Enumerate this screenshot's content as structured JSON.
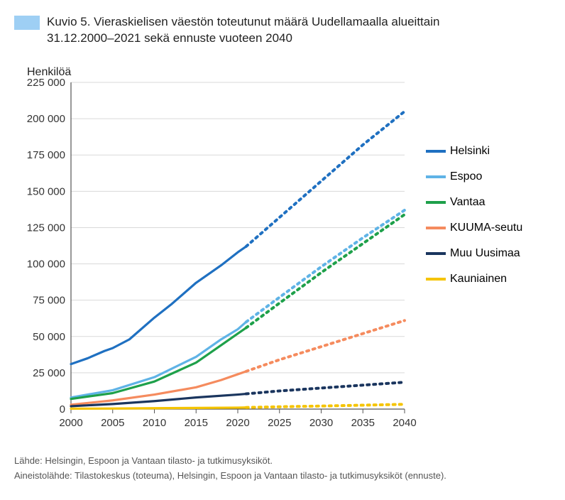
{
  "title_line1": "Kuvio 5. Vieraskielisen väestön toteutunut määrä Uudellamaalla alueittain",
  "title_line2": "31.12.2000–2021 sekä ennuste vuoteen 2040",
  "y_axis_label": "Henkilöä",
  "y_ticks": [
    0,
    25000,
    50000,
    75000,
    100000,
    125000,
    150000,
    175000,
    200000,
    225000
  ],
  "y_tick_labels": [
    "0",
    "25 000",
    "50 000",
    "75 000",
    "100 000",
    "125 000",
    "150 000",
    "175 000",
    "200 000",
    "225 000"
  ],
  "x_ticks": [
    2000,
    2005,
    2010,
    2015,
    2020,
    2025,
    2030,
    2035,
    2040
  ],
  "x_tick_labels": [
    "2000",
    "2005",
    "2010",
    "2015",
    "2020",
    "2025",
    "2030",
    "2035",
    "2040"
  ],
  "xlim": [
    2000,
    2040
  ],
  "ylim": [
    0,
    225000
  ],
  "grid_color": "#d9d9d9",
  "axis_color": "#555555",
  "background_color": "#ffffff",
  "title_block_color": "#9ecff4",
  "label_fontsize": 16,
  "tick_fontsize": 15,
  "actual_end_year": 2021,
  "series": [
    {
      "name": "Helsinki",
      "color": "#1f70c1",
      "actual": [
        [
          2000,
          31000
        ],
        [
          2002,
          35000
        ],
        [
          2004,
          40000
        ],
        [
          2005,
          42000
        ],
        [
          2007,
          48000
        ],
        [
          2010,
          63000
        ],
        [
          2012,
          72000
        ],
        [
          2015,
          87000
        ],
        [
          2018,
          99000
        ],
        [
          2020,
          108000
        ],
        [
          2021,
          112000
        ]
      ],
      "forecast": [
        [
          2021,
          112000
        ],
        [
          2025,
          132000
        ],
        [
          2030,
          157000
        ],
        [
          2035,
          182000
        ],
        [
          2040,
          205000
        ]
      ]
    },
    {
      "name": "Espoo",
      "color": "#5fb3e6",
      "actual": [
        [
          2000,
          8000
        ],
        [
          2005,
          13000
        ],
        [
          2010,
          22000
        ],
        [
          2015,
          36000
        ],
        [
          2018,
          48000
        ],
        [
          2020,
          55000
        ],
        [
          2021,
          60000
        ]
      ],
      "forecast": [
        [
          2021,
          60000
        ],
        [
          2025,
          77000
        ],
        [
          2030,
          98000
        ],
        [
          2035,
          118000
        ],
        [
          2040,
          137000
        ]
      ]
    },
    {
      "name": "Vantaa",
      "color": "#1ea04a",
      "actual": [
        [
          2000,
          7000
        ],
        [
          2005,
          11000
        ],
        [
          2010,
          19000
        ],
        [
          2015,
          32000
        ],
        [
          2018,
          44000
        ],
        [
          2020,
          52000
        ],
        [
          2021,
          56000
        ]
      ],
      "forecast": [
        [
          2021,
          56000
        ],
        [
          2025,
          73000
        ],
        [
          2030,
          94000
        ],
        [
          2035,
          114000
        ],
        [
          2040,
          134000
        ]
      ]
    },
    {
      "name": "KUUMA-seutu",
      "color": "#f58b5e",
      "actual": [
        [
          2000,
          3000
        ],
        [
          2005,
          6000
        ],
        [
          2010,
          10000
        ],
        [
          2015,
          15000
        ],
        [
          2018,
          20000
        ],
        [
          2020,
          24000
        ],
        [
          2021,
          26000
        ]
      ],
      "forecast": [
        [
          2021,
          26000
        ],
        [
          2025,
          34000
        ],
        [
          2030,
          43000
        ],
        [
          2035,
          52000
        ],
        [
          2040,
          61000
        ]
      ]
    },
    {
      "name": "Muu Uusimaa",
      "color": "#1a355e",
      "actual": [
        [
          2000,
          2000
        ],
        [
          2005,
          3500
        ],
        [
          2010,
          5500
        ],
        [
          2015,
          8000
        ],
        [
          2020,
          10000
        ],
        [
          2021,
          10500
        ]
      ],
      "forecast": [
        [
          2021,
          10500
        ],
        [
          2025,
          12500
        ],
        [
          2030,
          14500
        ],
        [
          2035,
          16500
        ],
        [
          2040,
          18500
        ]
      ]
    },
    {
      "name": "Kauniainen",
      "color": "#f5c400",
      "actual": [
        [
          2000,
          300
        ],
        [
          2005,
          400
        ],
        [
          2010,
          600
        ],
        [
          2015,
          800
        ],
        [
          2020,
          1000
        ],
        [
          2021,
          1100
        ]
      ],
      "forecast": [
        [
          2021,
          1100
        ],
        [
          2025,
          1600
        ],
        [
          2030,
          2100
        ],
        [
          2035,
          2700
        ],
        [
          2040,
          3300
        ]
      ]
    }
  ],
  "line_width_actual": 3.2,
  "line_width_forecast": 4,
  "dash_pattern": "3 6",
  "footnote1": "Lähde: Helsingin, Espoon ja Vantaan tilasto- ja tutkimusyksiköt.",
  "footnote2": "Aineistolähde: Tilastokeskus (toteuma), Helsingin, Espoon ja Vantaan tilasto- ja tutkimusyksiköt (ennuste)."
}
